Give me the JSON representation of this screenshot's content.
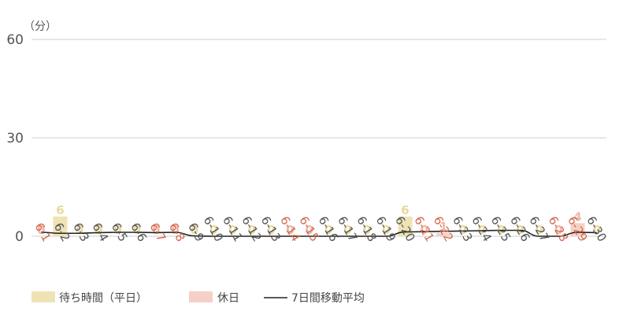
{
  "chart_data": {
    "type": "bar",
    "unit_label": "（分）",
    "ylim": [
      0,
      60
    ],
    "yticks": [
      0,
      30,
      60
    ],
    "grid": true,
    "legend_position": "bottom-left",
    "categories": [
      "6-1",
      "6-2",
      "6-3",
      "6-4",
      "6-5",
      "6-6",
      "6-7",
      "6-8",
      "6-9",
      "6-10",
      "6-11",
      "6-12",
      "6-13",
      "6-14",
      "6-15",
      "6-16",
      "6-17",
      "6-18",
      "6-19",
      "6-20",
      "6-21",
      "6-22",
      "6-23",
      "6-24",
      "6-25",
      "6-26",
      "6-27",
      "6-28",
      "6-29",
      "6-30"
    ],
    "holiday": [
      true,
      false,
      false,
      false,
      false,
      false,
      true,
      true,
      false,
      false,
      false,
      false,
      false,
      true,
      true,
      false,
      false,
      false,
      false,
      false,
      true,
      true,
      false,
      false,
      false,
      false,
      false,
      true,
      true,
      false
    ],
    "values": [
      0,
      6,
      0,
      0,
      0,
      0,
      0,
      0,
      0,
      0,
      0,
      0,
      0,
      0,
      0,
      0,
      0,
      0,
      0,
      6,
      0,
      1,
      0,
      0,
      0,
      0,
      0,
      0,
      4,
      0
    ],
    "moving_average": [
      1.2,
      0.9,
      0.9,
      1.1,
      1.2,
      1.2,
      1.1,
      1.2,
      0.1,
      0,
      0,
      0,
      0,
      0,
      0,
      0,
      0,
      0,
      0,
      1.3,
      1.4,
      1.5,
      1.6,
      1.7,
      1.8,
      1.8,
      0,
      0,
      1.2,
      1.1
    ],
    "series": [
      {
        "name": "待ち時間（平日）",
        "color": "#efe3b4",
        "label_color": "#e8d99a"
      },
      {
        "name": "休日",
        "color": "#f6d0c6",
        "label_color": "#efb6a8"
      },
      {
        "name": "7日間移動平均",
        "color": "#222222"
      }
    ],
    "weekday_tick_color": "#555555",
    "holiday_tick_color": "#d26a4c"
  }
}
